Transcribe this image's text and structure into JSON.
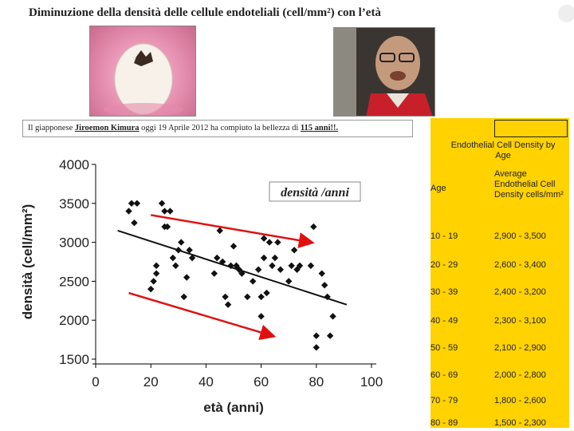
{
  "slide": {
    "title": "Diminuzione della densità delle cellule endoteliali (cell/mm²) con l’età",
    "caption_prefix": "Il giapponese ",
    "caption_name": "Jiroemon Kimura",
    "caption_middle": " oggi 19 Aprile 2012 ha compiuto la bellezza di ",
    "caption_age": "115 anni!!."
  },
  "photos": {
    "egg": "hatching-egg-photo",
    "man": "elderly-man-photo"
  },
  "chart_data": {
    "type": "scatter",
    "xlabel": "età (anni)",
    "ylabel": "densità (cell/mm²)",
    "annotation": "densità /anni",
    "xlim": [
      0,
      100
    ],
    "ylim": [
      1500,
      4000
    ],
    "xticks": [
      "0",
      "20",
      "40",
      "60",
      "80",
      "100"
    ],
    "yticks": [
      "1500",
      "2000",
      "2500",
      "3000",
      "3500",
      "4000"
    ],
    "points": [
      [
        12,
        3400
      ],
      [
        13,
        3500
      ],
      [
        14,
        3250
      ],
      [
        15,
        3500
      ],
      [
        20,
        2400
      ],
      [
        21,
        2500
      ],
      [
        22,
        2600
      ],
      [
        22,
        2700
      ],
      [
        24,
        3500
      ],
      [
        25,
        3200
      ],
      [
        25,
        3400
      ],
      [
        26,
        3200
      ],
      [
        27,
        3400
      ],
      [
        28,
        2800
      ],
      [
        29,
        2700
      ],
      [
        30,
        2900
      ],
      [
        31,
        3000
      ],
      [
        32,
        2300
      ],
      [
        33,
        2550
      ],
      [
        34,
        2900
      ],
      [
        35,
        2800
      ],
      [
        43,
        2600
      ],
      [
        44,
        2800
      ],
      [
        45,
        3150
      ],
      [
        46,
        2750
      ],
      [
        47,
        2300
      ],
      [
        48,
        2200
      ],
      [
        49,
        2700
      ],
      [
        50,
        2950
      ],
      [
        51,
        2700
      ],
      [
        52,
        2650
      ],
      [
        53,
        2600
      ],
      [
        55,
        2300
      ],
      [
        57,
        2500
      ],
      [
        59,
        2650
      ],
      [
        60,
        2050
      ],
      [
        60,
        2300
      ],
      [
        61,
        2800
      ],
      [
        61,
        3050
      ],
      [
        62,
        2350
      ],
      [
        63,
        3000
      ],
      [
        64,
        2700
      ],
      [
        65,
        2800
      ],
      [
        66,
        3000
      ],
      [
        67,
        2650
      ],
      [
        70,
        2500
      ],
      [
        71,
        2700
      ],
      [
        72,
        2900
      ],
      [
        73,
        2650
      ],
      [
        74,
        2700
      ],
      [
        78,
        2700
      ],
      [
        79,
        3200
      ],
      [
        80,
        1650
      ],
      [
        80,
        1800
      ],
      [
        82,
        2600
      ],
      [
        83,
        2450
      ],
      [
        84,
        2300
      ],
      [
        85,
        1800
      ],
      [
        86,
        2050
      ]
    ],
    "trend": [
      [
        8,
        3150
      ],
      [
        91,
        2200
      ]
    ],
    "bands": {
      "upper": [
        [
          20,
          3350
        ],
        [
          78,
          3000
        ]
      ],
      "lower": [
        [
          12,
          2350
        ],
        [
          64,
          1800
        ]
      ]
    },
    "colors": {
      "points": "#111111",
      "trend": "#111111",
      "bands": "#e01010",
      "grid": "#000000"
    }
  },
  "table": {
    "title": "Endothelial Cell Density by Age",
    "col_age": "Age",
    "col_density": "Average Endothelial Cell Density cells/mm²",
    "rows": [
      {
        "age": "10 - 19",
        "value": "2,900 - 3,500"
      },
      {
        "age": "20 - 29",
        "value": "2,600 - 3,400"
      },
      {
        "age": "30 - 39",
        "value": "2,400 - 3,200"
      },
      {
        "age": "40 - 49",
        "value": "2,300 - 3,100"
      },
      {
        "age": "50 - 59",
        "value": "2,100 - 2,900"
      },
      {
        "age": "60 - 69",
        "value": "2,000 - 2,800"
      },
      {
        "age": "70 - 79",
        "value": "1,800 - 2,600"
      },
      {
        "age": "80 - 89",
        "value": "1,500 - 2,300"
      }
    ],
    "accent": "#ffd200"
  }
}
